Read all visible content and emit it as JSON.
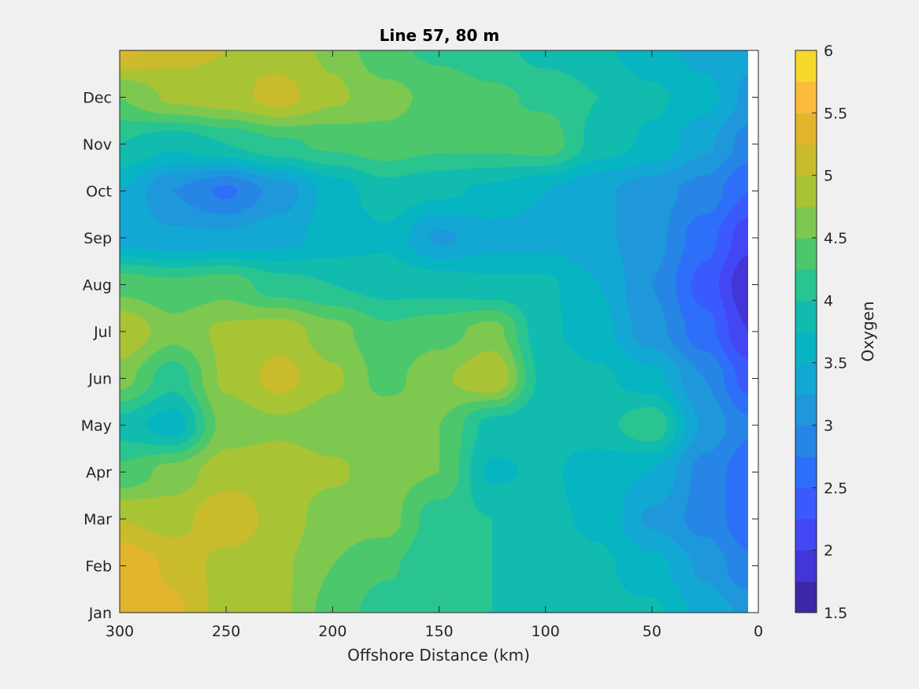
{
  "chart_data": {
    "type": "heatmap",
    "subtype": "filled-contour",
    "title": "Line 57, 80 m",
    "xlabel": "Offshore Distance (km)",
    "ylabel": "",
    "colorbar_label": "Oxygen",
    "x_direction": "reversed",
    "xlim": [
      0,
      300
    ],
    "x_ticks": [
      300,
      250,
      200,
      150,
      100,
      50,
      0
    ],
    "y_ticks": [
      {
        "label": "Jan",
        "value": 0
      },
      {
        "label": "Feb",
        "value": 1
      },
      {
        "label": "Mar",
        "value": 2
      },
      {
        "label": "Apr",
        "value": 3
      },
      {
        "label": "May",
        "value": 4
      },
      {
        "label": "Jun",
        "value": 5
      },
      {
        "label": "Jul",
        "value": 6
      },
      {
        "label": "Aug",
        "value": 7
      },
      {
        "label": "Sep",
        "value": 8
      },
      {
        "label": "Oct",
        "value": 9
      },
      {
        "label": "Nov",
        "value": 10
      },
      {
        "label": "Dec",
        "value": 11
      }
    ],
    "ylim": [
      0,
      12
    ],
    "clim": [
      1.5,
      6
    ],
    "colorbar_ticks": [
      "1.5",
      "2",
      "2.5",
      "3",
      "3.5",
      "4",
      "4.5",
      "5",
      "5.5",
      "6"
    ],
    "contour_levels": [
      1.5,
      1.75,
      2,
      2.25,
      2.5,
      2.75,
      3,
      3.25,
      3.5,
      3.75,
      4,
      4.25,
      4.5,
      4.75,
      5,
      5.25,
      5.5,
      5.75,
      6
    ],
    "colormap": [
      "#3e26a8",
      "#4435d9",
      "#4347f3",
      "#3b5afd",
      "#2d6ff8",
      "#2685e5",
      "#1e97db",
      "#13a7d3",
      "#07b4c2",
      "#11bcae",
      "#2ac491",
      "#4dc76b",
      "#7ec84f",
      "#a8c435",
      "#c9bb2c",
      "#e1b62d",
      "#fbbc3c",
      "#f6d72c",
      "#f5f022"
    ],
    "data_x_km": [
      300,
      275,
      250,
      225,
      200,
      175,
      150,
      125,
      100,
      75,
      50,
      25,
      5
    ],
    "data_y_months": [
      0,
      1,
      2,
      3,
      4,
      5,
      6,
      7,
      8,
      9,
      10,
      11,
      12
    ],
    "oxygen_grid": [
      [
        5.5,
        5.3,
        4.9,
        4.8,
        4.4,
        4.1,
        4.0,
        4.0,
        3.9,
        3.8,
        3.8,
        3.4,
        3.2
      ],
      [
        5.5,
        5.2,
        4.9,
        4.8,
        4.5,
        4.3,
        4.0,
        4.0,
        3.9,
        3.8,
        3.6,
        3.2,
        2.8
      ],
      [
        5.0,
        4.9,
        5.2,
        4.9,
        4.6,
        4.6,
        4.1,
        4.0,
        3.8,
        3.7,
        3.2,
        2.9,
        2.6
      ],
      [
        4.3,
        4.6,
        4.9,
        4.9,
        4.8,
        4.6,
        4.5,
        3.7,
        3.8,
        3.6,
        3.5,
        2.9,
        2.6
      ],
      [
        3.9,
        3.6,
        4.6,
        4.7,
        4.6,
        4.7,
        4.5,
        3.9,
        3.8,
        3.9,
        4.2,
        3.2,
        2.8
      ],
      [
        4.6,
        4.1,
        4.8,
        5.1,
        4.8,
        4.4,
        4.7,
        5.0,
        3.9,
        3.8,
        3.6,
        3.0,
        2.4
      ],
      [
        5.0,
        4.6,
        4.8,
        4.9,
        4.6,
        4.3,
        4.4,
        4.6,
        3.8,
        3.6,
        3.1,
        2.6,
        2.0
      ],
      [
        4.4,
        4.3,
        4.4,
        4.1,
        4.0,
        3.9,
        3.9,
        3.8,
        3.8,
        3.5,
        3.0,
        2.4,
        1.8
      ],
      [
        3.4,
        3.3,
        3.3,
        3.4,
        3.6,
        3.7,
        3.2,
        3.4,
        3.4,
        3.3,
        3.1,
        2.6,
        2.1
      ],
      [
        3.5,
        3.0,
        2.7,
        3.1,
        3.6,
        3.9,
        3.8,
        3.7,
        3.5,
        3.3,
        3.1,
        2.9,
        2.5
      ],
      [
        4.0,
        3.8,
        4.0,
        4.2,
        4.3,
        4.4,
        4.3,
        4.3,
        4.4,
        3.9,
        3.7,
        3.3,
        2.9
      ],
      [
        4.5,
        4.8,
        4.9,
        5.1,
        4.8,
        4.6,
        4.4,
        4.3,
        4.2,
        4.0,
        3.8,
        3.6,
        3.2
      ],
      [
        5.3,
        5.1,
        5.0,
        4.9,
        4.7,
        4.3,
        4.2,
        4.1,
        3.9,
        3.8,
        3.6,
        3.4,
        3.3
      ]
    ]
  }
}
